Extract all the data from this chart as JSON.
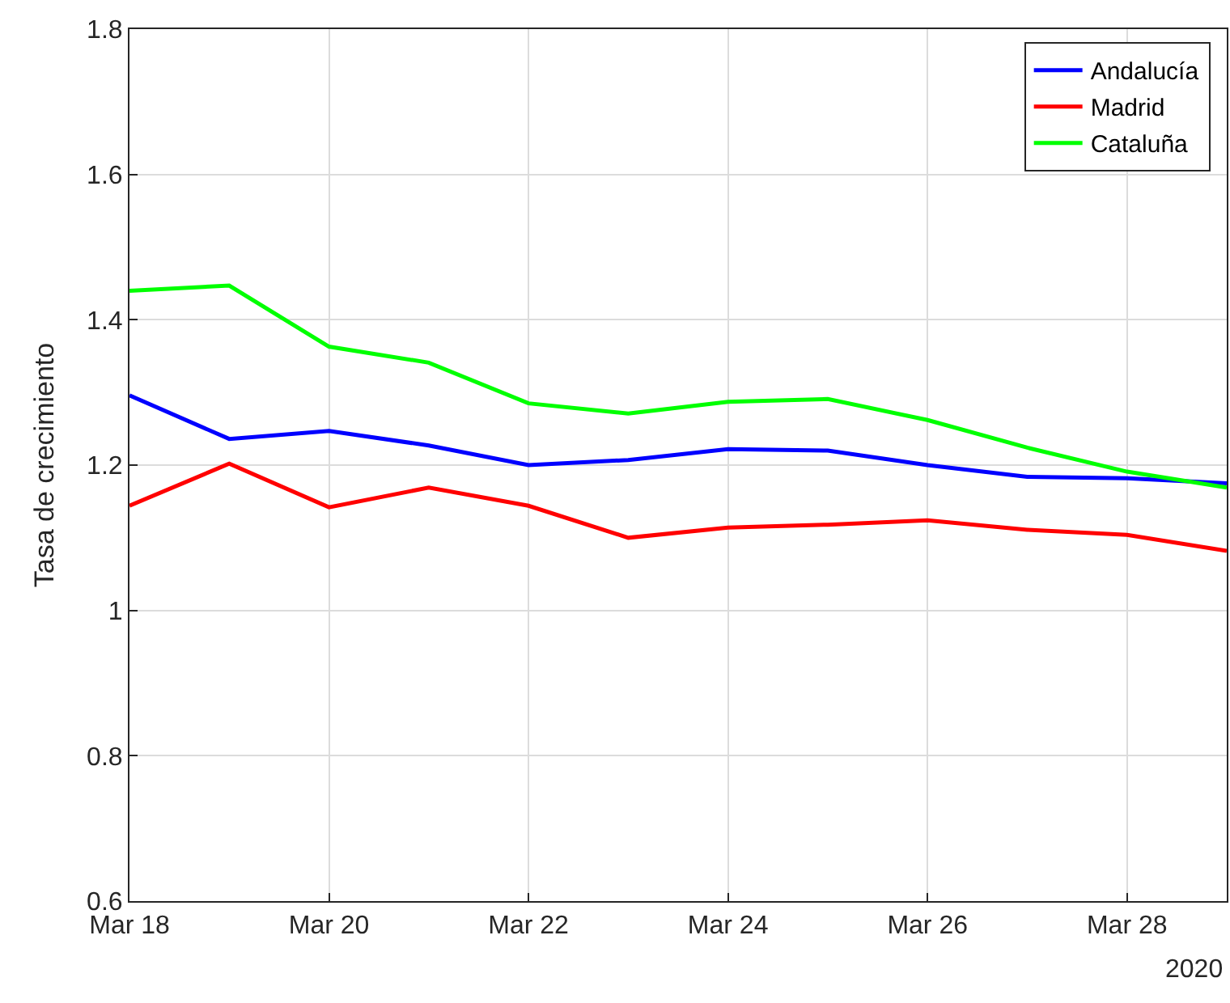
{
  "chart_data": {
    "type": "line",
    "ylabel": "Tasa de crecimiento",
    "annotations": [
      "2020"
    ],
    "x": [
      "2020-03-18",
      "2020-03-19",
      "2020-03-20",
      "2020-03-21",
      "2020-03-22",
      "2020-03-23",
      "2020-03-24",
      "2020-03-25",
      "2020-03-26",
      "2020-03-27",
      "2020-03-28",
      "2020-03-29"
    ],
    "series": [
      {
        "name": "Andalucía",
        "color": "#0000ff",
        "values": [
          1.296,
          1.236,
          1.247,
          1.227,
          1.2,
          1.207,
          1.222,
          1.22,
          1.2,
          1.184,
          1.182,
          1.175
        ]
      },
      {
        "name": "Madrid",
        "color": "#ff0000",
        "values": [
          1.144,
          1.202,
          1.142,
          1.169,
          1.144,
          1.1,
          1.114,
          1.118,
          1.124,
          1.111,
          1.104,
          1.082
        ]
      },
      {
        "name": "Cataluña",
        "color": "#00ff00",
        "values": [
          1.44,
          1.447,
          1.363,
          1.341,
          1.285,
          1.271,
          1.287,
          1.291,
          1.262,
          1.224,
          1.191,
          1.169
        ]
      }
    ],
    "xlim": [
      "2020-03-18",
      "2020-03-29"
    ],
    "xticks": [
      {
        "value": "2020-03-18",
        "label": "Mar 18"
      },
      {
        "value": "2020-03-20",
        "label": "Mar 20"
      },
      {
        "value": "2020-03-22",
        "label": "Mar 22"
      },
      {
        "value": "2020-03-24",
        "label": "Mar 24"
      },
      {
        "value": "2020-03-26",
        "label": "Mar 26"
      },
      {
        "value": "2020-03-28",
        "label": "Mar 28"
      }
    ],
    "ylim": [
      0.6,
      1.8
    ],
    "yticks": [
      0.6,
      0.8,
      1,
      1.2,
      1.4,
      1.6,
      1.8
    ],
    "grid": true,
    "legend": "top right",
    "line_style": "solid",
    "marker": "none"
  }
}
